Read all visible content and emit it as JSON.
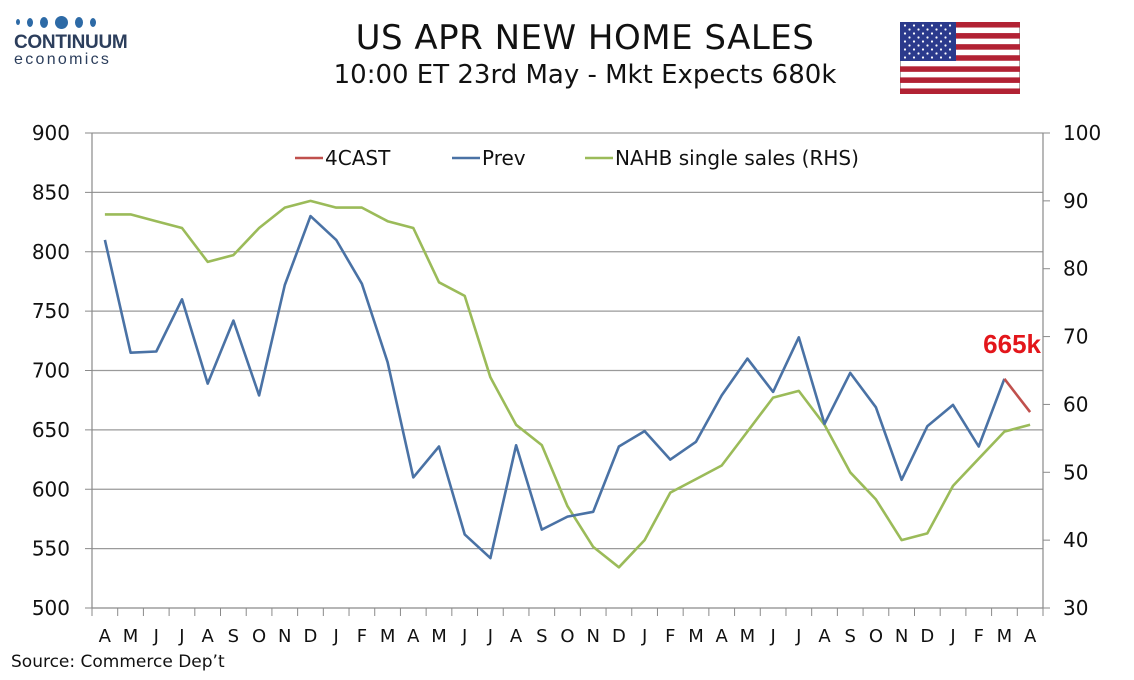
{
  "header": {
    "logo_line1": "CONTINUUM",
    "logo_line2": "economics",
    "title": "US APR NEW HOME SALES",
    "subtitle": "10:00 ET 23rd May - Mkt Expects 680k"
  },
  "footer": {
    "source": "Source: Commerce Dep’t"
  },
  "icons": {
    "flag": "us-flag-icon",
    "logo": "continuum-logo"
  },
  "colors": {
    "prev": "#4a72a5",
    "forecast": "#c0504d",
    "nahb": "#9bbb59",
    "annotation": "#e3161b"
  },
  "chart_data": {
    "type": "line",
    "categories": [
      "A",
      "M",
      "J",
      "J",
      "A",
      "S",
      "O",
      "N",
      "D",
      "J",
      "F",
      "M",
      "A",
      "M",
      "J",
      "J",
      "A",
      "S",
      "O",
      "N",
      "D",
      "J",
      "F",
      "M",
      "A",
      "M",
      "J",
      "J",
      "A",
      "S",
      "O",
      "N",
      "D",
      "J",
      "F",
      "M",
      "A"
    ],
    "y_left": {
      "range": [
        500,
        900
      ],
      "ticks": [
        500,
        550,
        600,
        650,
        700,
        750,
        800,
        850,
        900
      ]
    },
    "y_right": {
      "range": [
        30,
        100
      ],
      "ticks": [
        30,
        40,
        50,
        60,
        70,
        80,
        90,
        100
      ]
    },
    "grid": "horizontal",
    "legend_position": "top",
    "series": [
      {
        "name": "4CAST",
        "axis": "left",
        "points": [
          [
            35,
            693
          ],
          [
            36,
            665
          ]
        ]
      },
      {
        "name": "Prev",
        "axis": "left",
        "values": [
          810,
          715,
          716,
          760,
          689,
          742,
          679,
          772,
          830,
          810,
          773,
          707,
          610,
          636,
          562,
          542,
          637,
          566,
          577,
          581,
          636,
          649,
          625,
          640,
          679,
          710,
          682,
          728,
          655,
          698,
          669,
          608,
          653,
          671,
          636,
          693,
          null
        ]
      },
      {
        "name": "NAHB single sales (RHS)",
        "axis": "right",
        "values": [
          88,
          88,
          87,
          86,
          81,
          82,
          86,
          89,
          90,
          89,
          89,
          87,
          86,
          78,
          76,
          64,
          57,
          54,
          45,
          39,
          36,
          40,
          47,
          49,
          51,
          56,
          61,
          62,
          57,
          50,
          46,
          40,
          41,
          48,
          52,
          56,
          57
        ]
      }
    ],
    "annotation": {
      "text": "665k",
      "x_index": 36,
      "y": 665
    }
  }
}
